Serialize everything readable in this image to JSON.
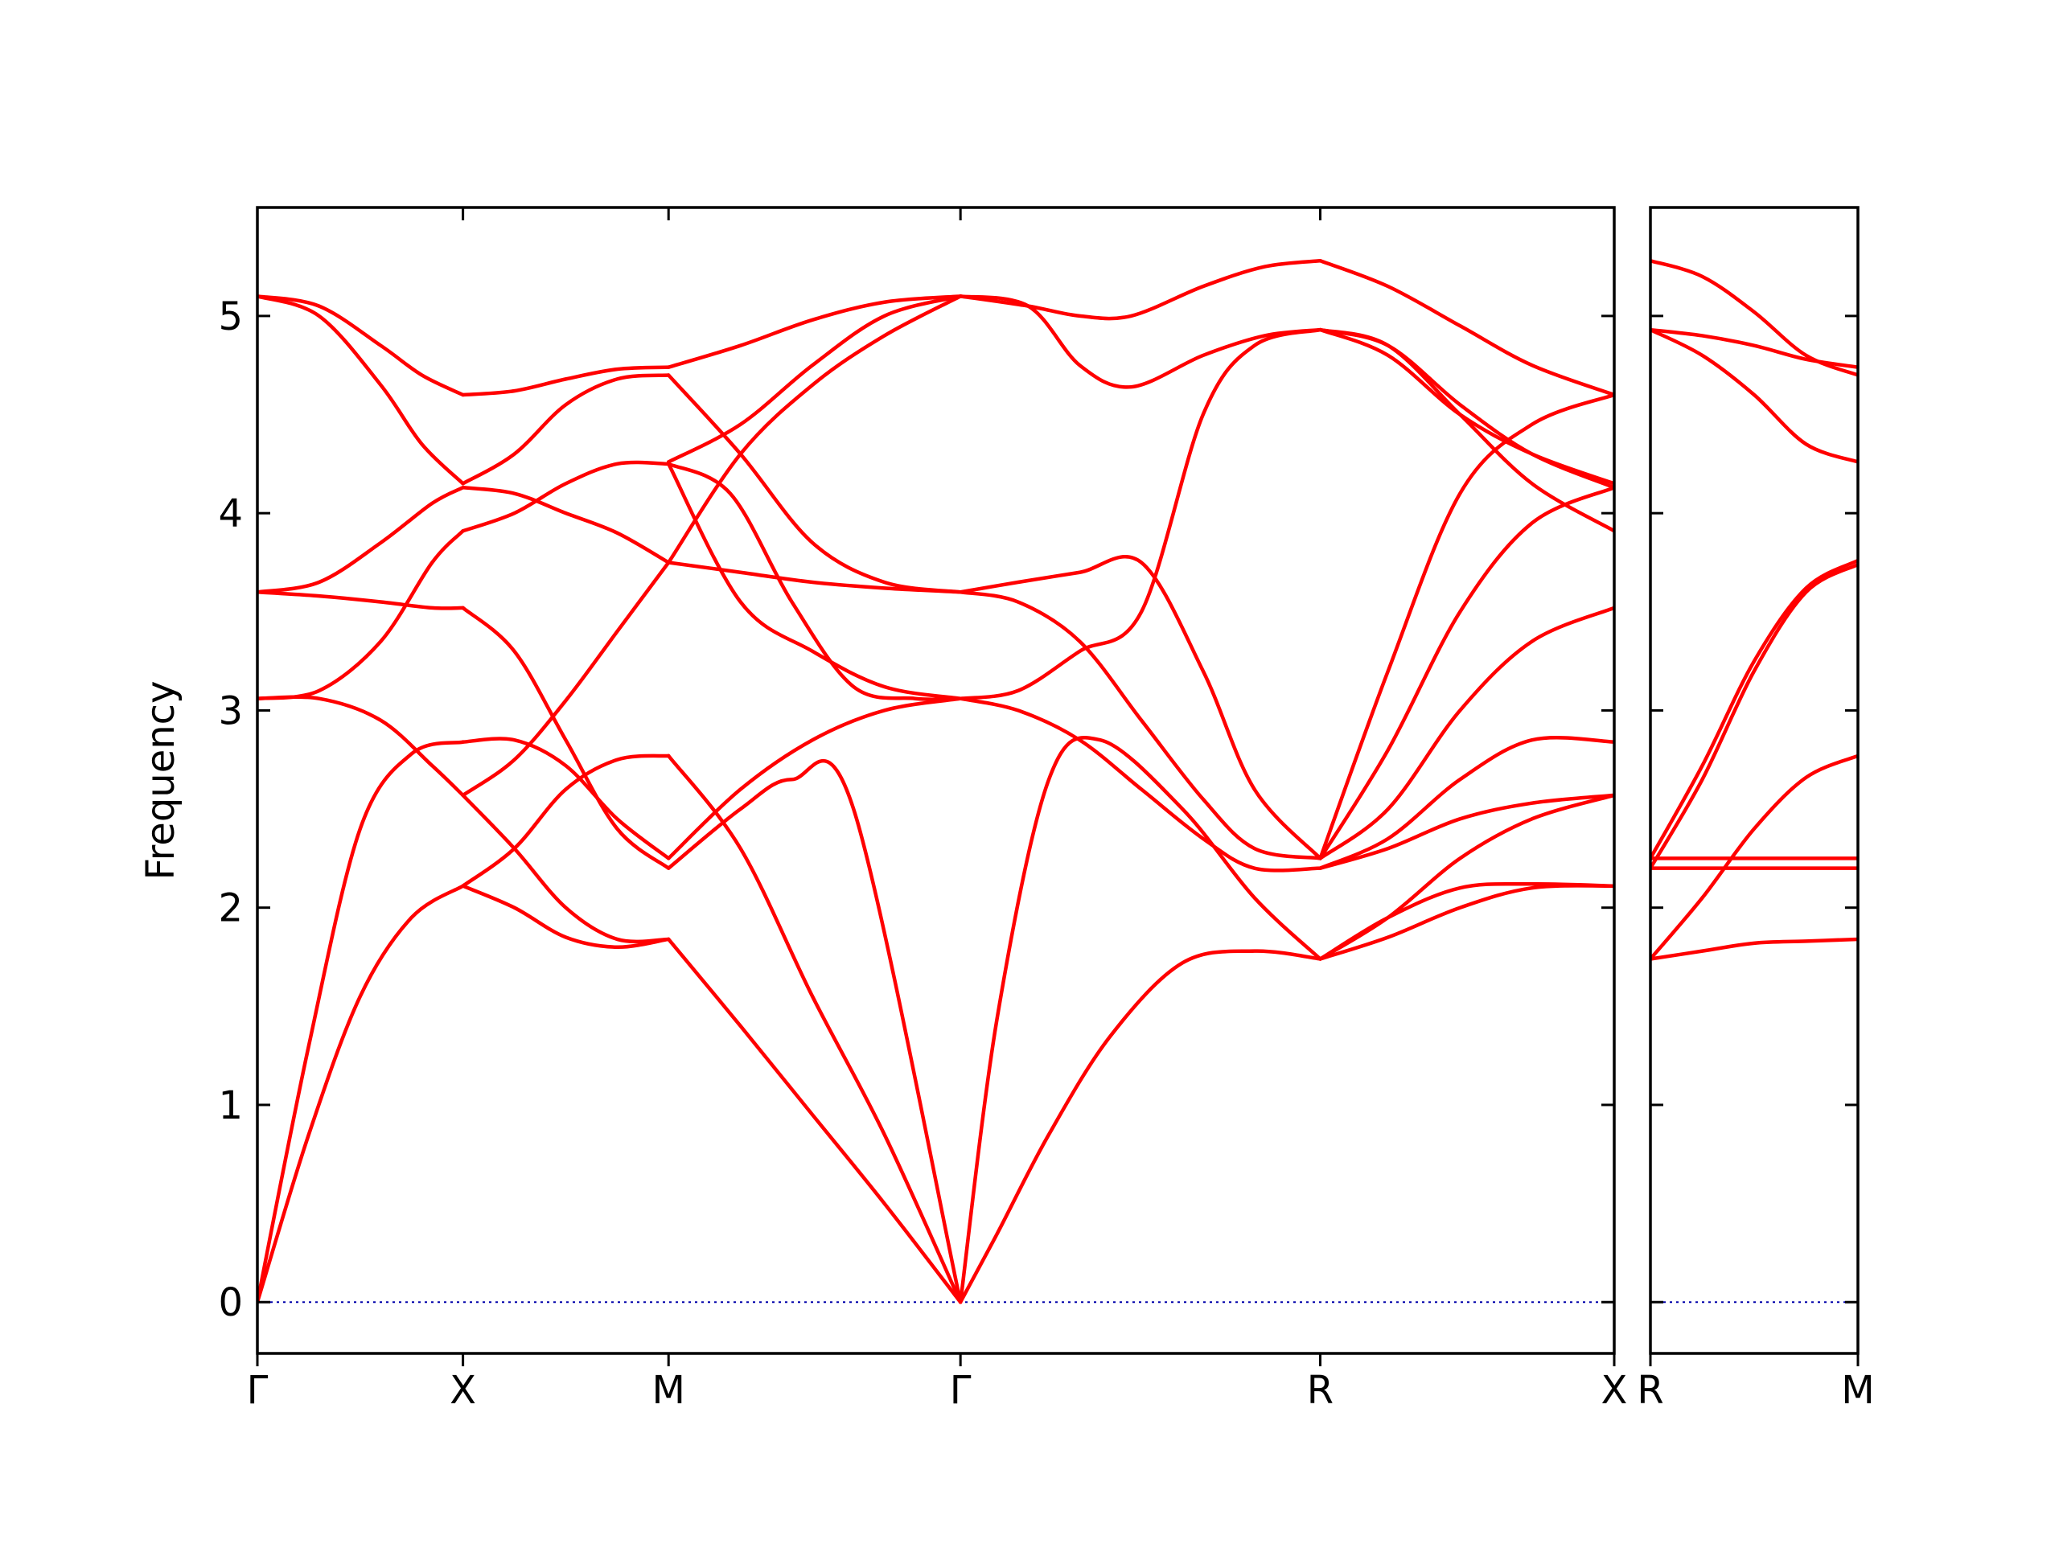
{
  "chart_data": {
    "type": "line",
    "title": "",
    "ylabel": "Frequency",
    "ylim": [
      -0.26,
      5.55
    ],
    "yticks": [
      0,
      1,
      2,
      3,
      4,
      5
    ],
    "grid": false,
    "legend": "none",
    "colors": {
      "band": "#ff0000",
      "zero": "#0000aa",
      "axis": "#000000"
    },
    "panels": [
      {
        "name": "main",
        "xlim": [
          0,
          6.6
        ],
        "xticks": [
          {
            "x": 0,
            "label": "Γ"
          },
          {
            "x": 1.0,
            "label": "X"
          },
          {
            "x": 2.0,
            "label": "M"
          },
          {
            "x": 3.42,
            "label": "Γ"
          },
          {
            "x": 5.17,
            "label": "R"
          },
          {
            "x": 6.6,
            "label": "X"
          }
        ],
        "series": [
          {
            "x": [
              0,
              0.25,
              0.5,
              0.75,
              1.0
            ],
            "y": [
              0,
              1.3,
              2.4,
              2.78,
              2.84
            ]
          },
          {
            "x": [
              0,
              0.25,
              0.5,
              0.75,
              1.0
            ],
            "y": [
              0,
              0.85,
              1.55,
              1.95,
              2.11
            ]
          },
          {
            "x": [
              0,
              0.3,
              0.6,
              0.85,
              1.0
            ],
            "y": [
              3.06,
              3.06,
              2.95,
              2.72,
              2.57
            ]
          },
          {
            "x": [
              0,
              0.3,
              0.6,
              0.85,
              1.0
            ],
            "y": [
              3.06,
              3.1,
              3.35,
              3.75,
              3.91
            ]
          },
          {
            "x": [
              0,
              0.3,
              0.6,
              0.85,
              1.0
            ],
            "y": [
              3.6,
              3.58,
              3.55,
              3.52,
              3.52
            ]
          },
          {
            "x": [
              0,
              0.3,
              0.6,
              0.85,
              1.0
            ],
            "y": [
              3.6,
              3.65,
              3.85,
              4.05,
              4.13
            ]
          },
          {
            "x": [
              0,
              0.3,
              0.6,
              0.8,
              1.0
            ],
            "y": [
              5.1,
              5.0,
              4.65,
              4.35,
              4.15
            ]
          },
          {
            "x": [
              0,
              0.3,
              0.6,
              0.8,
              1.0
            ],
            "y": [
              5.1,
              5.05,
              4.85,
              4.7,
              4.6
            ]
          },
          {
            "x": [
              1.0,
              1.25,
              1.5,
              1.75,
              2.0
            ],
            "y": [
              2.84,
              2.85,
              2.72,
              2.45,
              2.25
            ]
          },
          {
            "x": [
              1.0,
              1.25,
              1.5,
              1.75,
              2.0
            ],
            "y": [
              2.11,
              2.0,
              1.85,
              1.8,
              1.84
            ]
          },
          {
            "x": [
              1.0,
              1.25,
              1.5,
              1.75,
              2.0
            ],
            "y": [
              2.57,
              2.3,
              2.0,
              1.84,
              1.84
            ]
          },
          {
            "x": [
              1.0,
              1.25,
              1.5,
              1.75,
              2.0
            ],
            "y": [
              2.57,
              2.75,
              3.05,
              3.4,
              3.75
            ]
          },
          {
            "x": [
              1.0,
              1.25,
              1.5,
              1.75,
              2.0
            ],
            "y": [
              3.52,
              3.3,
              2.85,
              2.4,
              2.2
            ]
          },
          {
            "x": [
              1.0,
              1.25,
              1.5,
              1.75,
              2.0
            ],
            "y": [
              2.11,
              2.3,
              2.6,
              2.75,
              2.77
            ]
          },
          {
            "x": [
              1.0,
              1.25,
              1.5,
              1.75,
              2.0
            ],
            "y": [
              3.91,
              4.0,
              4.15,
              4.25,
              4.25
            ]
          },
          {
            "x": [
              1.0,
              1.25,
              1.5,
              1.75,
              2.0
            ],
            "y": [
              4.13,
              4.1,
              4.0,
              3.9,
              3.75
            ]
          },
          {
            "x": [
              1.0,
              1.25,
              1.5,
              1.75,
              2.0
            ],
            "y": [
              4.15,
              4.3,
              4.55,
              4.68,
              4.7
            ]
          },
          {
            "x": [
              1.0,
              1.25,
              1.5,
              1.75,
              2.0
            ],
            "y": [
              4.6,
              4.62,
              4.68,
              4.73,
              4.74
            ]
          },
          {
            "x": [
              2.0,
              2.35,
              2.7,
              3.05,
              3.42
            ],
            "y": [
              1.84,
              1.4,
              0.95,
              0.5,
              0
            ]
          },
          {
            "x": [
              2.0,
              2.35,
              2.7,
              3.05,
              3.42
            ],
            "y": [
              2.77,
              2.3,
              1.55,
              0.85,
              0
            ]
          },
          {
            "x": [
              2.0,
              2.35,
              2.6,
              2.9,
              3.42
            ],
            "y": [
              2.2,
              2.5,
              2.65,
              2.5,
              0
            ]
          },
          {
            "x": [
              2.0,
              2.35,
              2.7,
              3.05,
              3.42
            ],
            "y": [
              2.25,
              2.6,
              2.85,
              3.0,
              3.06
            ]
          },
          {
            "x": [
              2.0,
              2.35,
              2.7,
              3.05,
              3.42
            ],
            "y": [
              3.75,
              3.7,
              3.65,
              3.62,
              3.6
            ]
          },
          {
            "x": [
              2.0,
              2.3,
              2.6,
              2.9,
              3.2,
              3.42
            ],
            "y": [
              4.25,
              4.1,
              3.55,
              3.12,
              3.06,
              3.06
            ]
          },
          {
            "x": [
              2.0,
              2.35,
              2.7,
              3.05,
              3.42
            ],
            "y": [
              4.7,
              4.3,
              3.85,
              3.65,
              3.6
            ]
          },
          {
            "x": [
              2.0,
              2.35,
              2.7,
              3.05,
              3.42
            ],
            "y": [
              4.25,
              3.55,
              3.3,
              3.12,
              3.06
            ]
          },
          {
            "x": [
              2.0,
              2.35,
              2.7,
              3.05,
              3.42
            ],
            "y": [
              3.75,
              4.3,
              4.65,
              4.9,
              5.1
            ]
          },
          {
            "x": [
              2.0,
              2.35,
              2.7,
              3.05,
              3.42
            ],
            "y": [
              4.26,
              4.45,
              4.75,
              5.0,
              5.1
            ]
          },
          {
            "x": [
              2.0,
              2.35,
              2.7,
              3.05,
              3.42
            ],
            "y": [
              4.74,
              4.85,
              4.98,
              5.07,
              5.1
            ]
          },
          {
            "x": [
              3.42,
              3.6,
              3.85,
              4.15,
              4.5,
              4.85,
              5.17
            ],
            "y": [
              0,
              0.35,
              0.85,
              1.35,
              1.72,
              1.78,
              1.74
            ]
          },
          {
            "x": [
              3.42,
              3.6,
              3.85,
              4.1,
              4.5,
              4.85,
              5.17
            ],
            "y": [
              0,
              1.45,
              2.65,
              2.85,
              2.5,
              2.05,
              1.74
            ]
          },
          {
            "x": [
              3.42,
              3.7,
              4.0,
              4.3,
              4.6,
              4.85,
              5.17
            ],
            "y": [
              3.06,
              3.0,
              2.85,
              2.6,
              2.35,
              2.2,
              2.2
            ]
          },
          {
            "x": [
              3.42,
              3.7,
              4.0,
              4.3,
              4.6,
              4.85,
              5.17
            ],
            "y": [
              3.06,
              3.1,
              3.3,
              3.5,
              4.5,
              4.85,
              4.93
            ]
          },
          {
            "x": [
              3.42,
              3.7,
              4.0,
              4.3,
              4.6,
              4.85,
              5.17
            ],
            "y": [
              3.6,
              3.65,
              3.7,
              3.75,
              3.2,
              2.6,
              2.25
            ]
          },
          {
            "x": [
              3.42,
              3.7,
              4.0,
              4.3,
              4.6,
              4.85,
              5.17
            ],
            "y": [
              3.6,
              3.55,
              3.35,
              2.95,
              2.55,
              2.3,
              2.25
            ]
          },
          {
            "x": [
              3.42,
              3.75,
              4.0,
              4.25,
              4.6,
              4.9,
              5.17
            ],
            "y": [
              5.1,
              5.05,
              4.75,
              4.64,
              4.8,
              4.9,
              4.93
            ]
          },
          {
            "x": [
              3.42,
              3.75,
              4.0,
              4.25,
              4.6,
              4.9,
              5.17
            ],
            "y": [
              5.1,
              5.05,
              5.0,
              5.0,
              5.15,
              5.25,
              5.28
            ]
          },
          {
            "x": [
              5.17,
              5.5,
              5.85,
              6.2,
              6.6
            ],
            "y": [
              1.74,
              1.95,
              2.1,
              2.12,
              2.11
            ]
          },
          {
            "x": [
              5.17,
              5.5,
              5.85,
              6.2,
              6.6
            ],
            "y": [
              1.74,
              1.85,
              2.0,
              2.1,
              2.11
            ]
          },
          {
            "x": [
              5.17,
              5.5,
              5.85,
              6.2,
              6.6
            ],
            "y": [
              2.2,
              2.3,
              2.45,
              2.53,
              2.57
            ]
          },
          {
            "x": [
              5.17,
              5.5,
              5.85,
              6.2,
              6.6
            ],
            "y": [
              1.74,
              1.95,
              2.25,
              2.45,
              2.57
            ]
          },
          {
            "x": [
              5.17,
              5.5,
              5.85,
              6.2,
              6.6
            ],
            "y": [
              2.2,
              2.35,
              2.65,
              2.85,
              2.84
            ]
          },
          {
            "x": [
              5.17,
              5.5,
              5.85,
              6.2,
              6.6
            ],
            "y": [
              2.25,
              2.5,
              3.0,
              3.35,
              3.52
            ]
          },
          {
            "x": [
              5.17,
              5.5,
              5.85,
              6.2,
              6.6
            ],
            "y": [
              2.25,
              2.8,
              3.5,
              3.95,
              4.13
            ]
          },
          {
            "x": [
              5.17,
              5.5,
              5.85,
              6.2,
              6.6
            ],
            "y": [
              2.25,
              3.2,
              4.1,
              4.45,
              4.6
            ]
          },
          {
            "x": [
              5.17,
              5.5,
              5.85,
              6.2,
              6.6
            ],
            "y": [
              4.93,
              4.85,
              4.5,
              4.15,
              3.91
            ]
          },
          {
            "x": [
              5.17,
              5.5,
              5.85,
              6.2,
              6.6
            ],
            "y": [
              4.93,
              4.8,
              4.5,
              4.3,
              4.15
            ]
          },
          {
            "x": [
              5.17,
              5.5,
              5.85,
              6.2,
              6.6
            ],
            "y": [
              4.93,
              4.85,
              4.55,
              4.3,
              4.13
            ]
          },
          {
            "x": [
              5.17,
              5.5,
              5.85,
              6.2,
              6.6
            ],
            "y": [
              5.28,
              5.15,
              4.95,
              4.75,
              4.6
            ]
          }
        ]
      },
      {
        "name": "right",
        "xlim": [
          0,
          1
        ],
        "xticks": [
          {
            "x": 0,
            "label": "R"
          },
          {
            "x": 1,
            "label": "M"
          }
        ],
        "series": [
          {
            "x": [
              0,
              0.25,
              0.5,
              0.75,
              1.0
            ],
            "y": [
              1.74,
              1.78,
              1.82,
              1.83,
              1.84
            ]
          },
          {
            "x": [
              0,
              0.25,
              0.5,
              0.75,
              1.0
            ],
            "y": [
              1.74,
              2.05,
              2.4,
              2.66,
              2.77
            ]
          },
          {
            "x": [
              0,
              1.0
            ],
            "y": [
              2.2,
              2.2
            ]
          },
          {
            "x": [
              0,
              1.0
            ],
            "y": [
              2.25,
              2.25
            ]
          },
          {
            "x": [
              0,
              0.25,
              0.5,
              0.75,
              1.0
            ],
            "y": [
              2.2,
              2.65,
              3.2,
              3.6,
              3.74
            ]
          },
          {
            "x": [
              0,
              0.25,
              0.5,
              0.75,
              1.0
            ],
            "y": [
              2.25,
              2.72,
              3.25,
              3.62,
              3.76
            ]
          },
          {
            "x": [
              0,
              0.25,
              0.5,
              0.75,
              1.0
            ],
            "y": [
              4.93,
              4.8,
              4.6,
              4.35,
              4.26
            ]
          },
          {
            "x": [
              0,
              0.25,
              0.5,
              0.75,
              1.0
            ],
            "y": [
              4.93,
              4.9,
              4.85,
              4.78,
              4.74
            ]
          },
          {
            "x": [
              0,
              0.25,
              0.5,
              0.75,
              1.0
            ],
            "y": [
              5.28,
              5.2,
              5.02,
              4.8,
              4.7
            ]
          }
        ]
      }
    ]
  }
}
